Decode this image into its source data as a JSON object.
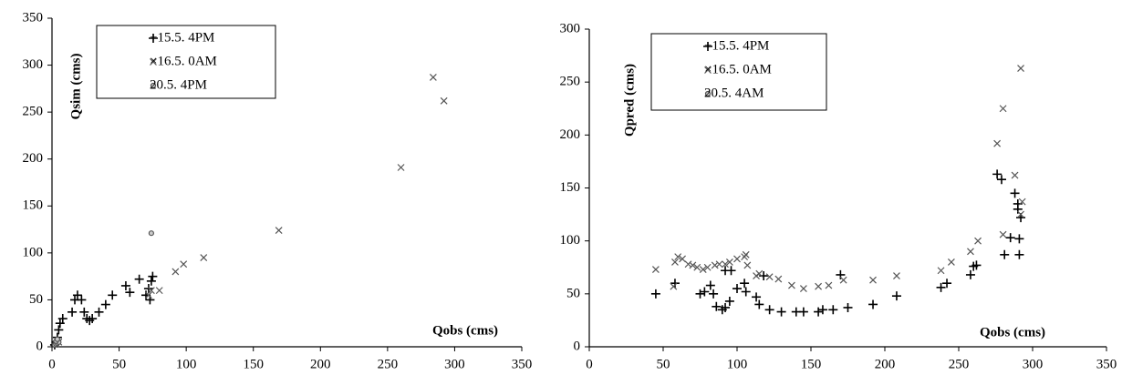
{
  "chart_data": [
    {
      "type": "scatter",
      "x_label": "Qobs (cms)",
      "y_label": "Qsim (cms)",
      "xlim": [
        0,
        350
      ],
      "xticks": [
        0,
        50,
        100,
        150,
        200,
        250,
        300,
        350
      ],
      "ylim": [
        0,
        350
      ],
      "yticks": [
        0,
        50,
        100,
        150,
        200,
        250,
        300,
        350
      ],
      "grid": false,
      "legend": "upper left",
      "series": [
        {
          "name": "+15.5. 4PM",
          "marker": "plus",
          "color": "#000000",
          "x": [
            2,
            3,
            4,
            5,
            6,
            8,
            15,
            17,
            19,
            22,
            24,
            26,
            28,
            30,
            35,
            40,
            45,
            55,
            58,
            65,
            70,
            72,
            73,
            74,
            75
          ],
          "values": [
            2,
            5,
            10,
            18,
            25,
            30,
            37,
            50,
            55,
            50,
            37,
            30,
            28,
            30,
            37,
            45,
            55,
            65,
            58,
            72,
            55,
            62,
            50,
            70,
            75
          ]
        },
        {
          "name": "×16.5. 0AM",
          "marker": "cross",
          "color": "#555555",
          "x": [
            3,
            5,
            72,
            74,
            80,
            92,
            98,
            113,
            169,
            260,
            284,
            292
          ],
          "values": [
            3,
            5,
            55,
            60,
            60,
            80,
            88,
            95,
            124,
            191,
            287,
            262
          ]
        },
        {
          "name": "20.5. 4PM",
          "marker": "circle",
          "color": "#555555",
          "x": [
            2,
            3,
            4,
            5,
            3,
            4,
            74
          ],
          "values": [
            2,
            3,
            4,
            5,
            6,
            8,
            121
          ]
        }
      ]
    },
    {
      "type": "scatter",
      "x_label": "Qobs (cms)",
      "y_label": "Qpred (cms)",
      "xlim": [
        0,
        350
      ],
      "xticks": [
        0,
        50,
        100,
        150,
        200,
        250,
        300,
        350
      ],
      "ylim": [
        0,
        300
      ],
      "yticks": [
        0,
        50,
        100,
        150,
        200,
        250,
        300
      ],
      "grid": false,
      "legend": "upper left",
      "series": [
        {
          "name": "+15.5. 4PM",
          "marker": "plus",
          "color": "#000000",
          "x": [
            45,
            58,
            75,
            78,
            82,
            84,
            86,
            90,
            92,
            95,
            92,
            96,
            100,
            105,
            106,
            113,
            115,
            118,
            122,
            130,
            140,
            145,
            155,
            158,
            165,
            170,
            175,
            192,
            208,
            238,
            242,
            258,
            260,
            262,
            276,
            279,
            281,
            285,
            288,
            290,
            290,
            291,
            291,
            292
          ],
          "values": [
            50,
            60,
            50,
            52,
            58,
            50,
            38,
            35,
            37,
            43,
            72,
            72,
            55,
            60,
            52,
            47,
            40,
            67,
            35,
            33,
            33,
            33,
            33,
            35,
            35,
            68,
            37,
            40,
            48,
            56,
            60,
            68,
            76,
            77,
            163,
            158,
            87,
            103,
            145,
            135,
            130,
            102,
            87,
            122
          ]
        },
        {
          "name": "×16.5. 0AM",
          "marker": "cross",
          "color": "#555555",
          "x": [
            45,
            57,
            58,
            60,
            63,
            67,
            70,
            73,
            77,
            80,
            85,
            88,
            92,
            95,
            100,
            105,
            106,
            107,
            113,
            115,
            122,
            128,
            137,
            145,
            155,
            162,
            172,
            192,
            208,
            238,
            245,
            258,
            263,
            276,
            280,
            280,
            288,
            292,
            293,
            292
          ],
          "values": [
            73,
            57,
            80,
            85,
            83,
            78,
            77,
            75,
            73,
            75,
            77,
            78,
            78,
            80,
            83,
            85,
            87,
            77,
            67,
            69,
            66,
            64,
            58,
            55,
            57,
            58,
            63,
            63,
            67,
            72,
            80,
            90,
            100,
            192,
            225,
            106,
            162,
            263,
            137,
            125
          ]
        },
        {
          "name": "20.5. 4AM",
          "marker": "circle",
          "color": "#555555",
          "x": [],
          "values": []
        }
      ]
    }
  ]
}
